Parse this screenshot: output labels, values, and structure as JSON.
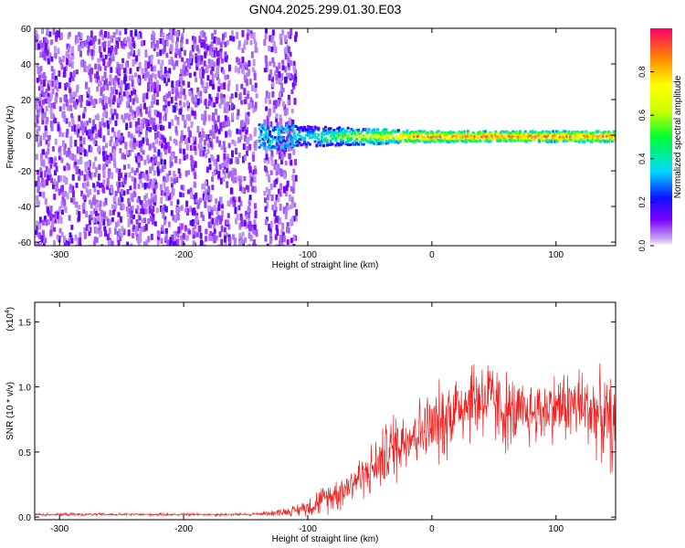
{
  "title": "GN04.2025.299.01.30.E03",
  "chart_data": [
    {
      "type": "heatmap",
      "title": "GN04.2025.299.01.30.E03",
      "xlabel": "Height of straight line (km)",
      "ylabel": "Frequency (Hz)",
      "xlim": [
        -320,
        148
      ],
      "ylim": [
        -62,
        60
      ],
      "xticks": [
        -300,
        -200,
        -100,
        0,
        100
      ],
      "yticks": [
        -60,
        -40,
        -20,
        0,
        20,
        40,
        60
      ],
      "description": "Noise-dominated region (purple speckle) from -320 km to about -110 km; narrow band near 0 Hz from about -140 km to 148 km, strongest (red/yellow) at 0 Hz for heights above -30 km.",
      "noise_region_km": [
        -320,
        -110
      ],
      "signal_band_start_km": -140,
      "signal_band_center_hz": 0,
      "colorbar": {
        "label": "Normalized spectral amplitude",
        "range": [
          0.0,
          1.0
        ],
        "ticks": [
          0.0,
          0.2,
          0.4,
          0.6,
          0.8
        ]
      }
    },
    {
      "type": "line",
      "xlabel": "Height of straight line (km)",
      "ylabel": "SNR (10 * v/v)",
      "yscale_label": "(x10",
      "yscale_exp": "4",
      "xlim": [
        -320,
        148
      ],
      "ylim": [
        -0.02,
        1.65
      ],
      "xticks": [
        -300,
        -200,
        -100,
        0,
        100
      ],
      "yticks": [
        0.0,
        0.5,
        1.0,
        1.5
      ],
      "color": "#ee2222",
      "series": [
        {
          "name": "SNR",
          "x": [
            -320,
            -300,
            -250,
            -200,
            -150,
            -130,
            -110,
            -100,
            -90,
            -80,
            -70,
            -60,
            -50,
            -40,
            -30,
            -20,
            -10,
            0,
            10,
            20,
            30,
            40,
            50,
            60,
            70,
            80,
            90,
            100,
            110,
            120,
            130,
            140,
            148
          ],
          "values": [
            0.02,
            0.02,
            0.02,
            0.02,
            0.02,
            0.03,
            0.05,
            0.08,
            0.12,
            0.17,
            0.22,
            0.3,
            0.35,
            0.45,
            0.55,
            0.62,
            0.66,
            0.68,
            0.75,
            0.85,
            0.9,
            0.92,
            0.88,
            0.8,
            0.78,
            0.8,
            0.82,
            0.85,
            0.86,
            0.85,
            0.82,
            0.75,
            0.68
          ],
          "spread": [
            0.01,
            0.01,
            0.01,
            0.01,
            0.01,
            0.02,
            0.04,
            0.08,
            0.1,
            0.12,
            0.15,
            0.15,
            0.18,
            0.22,
            0.28,
            0.25,
            0.25,
            0.28,
            0.3,
            0.3,
            0.32,
            0.35,
            0.3,
            0.3,
            0.25,
            0.25,
            0.25,
            0.25,
            0.28,
            0.3,
            0.3,
            0.32,
            0.35
          ]
        }
      ]
    }
  ]
}
